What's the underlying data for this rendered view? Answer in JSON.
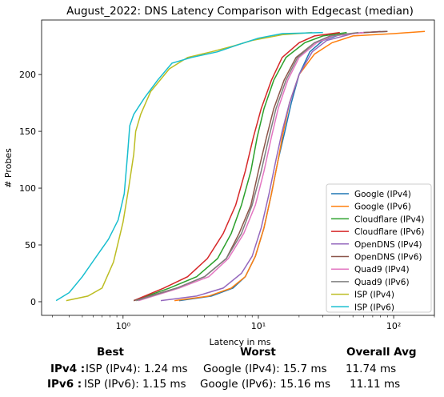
{
  "chart_data": {
    "type": "line",
    "title": "August_2022: DNS Latency Comparison with Edgecast (median)",
    "xlabel": "Latency in ms",
    "ylabel": "# Probes",
    "x_scale": "log",
    "xlim": [
      0.25,
      200
    ],
    "ylim": [
      -12,
      248
    ],
    "x_ticks": [
      1,
      10,
      100
    ],
    "x_tick_labels": [
      "10⁰",
      "10¹",
      "10²"
    ],
    "y_ticks": [
      0,
      50,
      100,
      150,
      200
    ],
    "legend_position": "lower-right",
    "grid": false,
    "series": [
      {
        "name": "Google (IPv4)",
        "color": "#1f77b4",
        "points": [
          [
            2.6,
            1
          ],
          [
            4.5,
            5
          ],
          [
            6.5,
            12
          ],
          [
            8,
            22
          ],
          [
            9.5,
            40
          ],
          [
            11,
            65
          ],
          [
            12.5,
            95
          ],
          [
            14,
            125
          ],
          [
            15.7,
            150
          ],
          [
            17.5,
            175
          ],
          [
            20,
            200
          ],
          [
            24,
            220
          ],
          [
            30,
            230
          ],
          [
            40,
            235
          ],
          [
            60,
            237
          ],
          [
            90,
            238
          ]
        ]
      },
      {
        "name": "Google (IPv6)",
        "color": "#ff7f0e",
        "points": [
          [
            2.4,
            1
          ],
          [
            4.3,
            5
          ],
          [
            6.3,
            12
          ],
          [
            8,
            22
          ],
          [
            9.5,
            40
          ],
          [
            11,
            65
          ],
          [
            12.5,
            95
          ],
          [
            14,
            125
          ],
          [
            15.2,
            148
          ],
          [
            17,
            175
          ],
          [
            20,
            200
          ],
          [
            26,
            218
          ],
          [
            35,
            228
          ],
          [
            50,
            234
          ],
          [
            100,
            236
          ],
          [
            170,
            238
          ]
        ]
      },
      {
        "name": "Cloudflare (IPv4)",
        "color": "#2ca02c",
        "points": [
          [
            1.2,
            1
          ],
          [
            2.2,
            12
          ],
          [
            3.5,
            22
          ],
          [
            5,
            38
          ],
          [
            6.3,
            60
          ],
          [
            7.5,
            85
          ],
          [
            8.8,
            115
          ],
          [
            9.8,
            145
          ],
          [
            11,
            170
          ],
          [
            13,
            195
          ],
          [
            16,
            215
          ],
          [
            22,
            228
          ],
          [
            30,
            234
          ],
          [
            45,
            237
          ]
        ]
      },
      {
        "name": "Cloudflare (IPv6)",
        "color": "#d62728",
        "points": [
          [
            1.2,
            1
          ],
          [
            2,
            12
          ],
          [
            3,
            22
          ],
          [
            4.2,
            38
          ],
          [
            5.5,
            60
          ],
          [
            6.8,
            85
          ],
          [
            8,
            115
          ],
          [
            9.2,
            145
          ],
          [
            10.5,
            170
          ],
          [
            12.5,
            195
          ],
          [
            15,
            215
          ],
          [
            20,
            228
          ],
          [
            26,
            234
          ],
          [
            40,
            237
          ]
        ]
      },
      {
        "name": "OpenDNS (IPv4)",
        "color": "#9467bd",
        "points": [
          [
            1.9,
            1
          ],
          [
            3.5,
            5
          ],
          [
            5.5,
            12
          ],
          [
            7.5,
            25
          ],
          [
            9,
            40
          ],
          [
            10.5,
            65
          ],
          [
            12,
            95
          ],
          [
            13.5,
            125
          ],
          [
            15,
            150
          ],
          [
            17,
            175
          ],
          [
            20,
            200
          ],
          [
            25,
            220
          ],
          [
            32,
            230
          ],
          [
            50,
            236
          ],
          [
            80,
            238
          ]
        ]
      },
      {
        "name": "OpenDNS (IPv6)",
        "color": "#8c564b",
        "points": [
          [
            1.2,
            1
          ],
          [
            2.5,
            12
          ],
          [
            4,
            22
          ],
          [
            5.8,
            38
          ],
          [
            7.2,
            60
          ],
          [
            8.8,
            85
          ],
          [
            10,
            115
          ],
          [
            11.5,
            145
          ],
          [
            13,
            170
          ],
          [
            15.5,
            195
          ],
          [
            19,
            215
          ],
          [
            26,
            228
          ],
          [
            35,
            234
          ],
          [
            60,
            237
          ],
          [
            90,
            238
          ]
        ]
      },
      {
        "name": "Quad9 (IPv4)",
        "color": "#e377c2",
        "points": [
          [
            1.3,
            1
          ],
          [
            2.6,
            12
          ],
          [
            4.3,
            22
          ],
          [
            6,
            38
          ],
          [
            7.8,
            60
          ],
          [
            9.5,
            85
          ],
          [
            11,
            115
          ],
          [
            12.5,
            145
          ],
          [
            14,
            170
          ],
          [
            16.5,
            195
          ],
          [
            20,
            215
          ],
          [
            27,
            228
          ],
          [
            36,
            234
          ],
          [
            60,
            237
          ]
        ]
      },
      {
        "name": "Quad9 (IPv6)",
        "color": "#7f7f7f",
        "points": [
          [
            1.25,
            1
          ],
          [
            2.5,
            12
          ],
          [
            4,
            22
          ],
          [
            5.8,
            38
          ],
          [
            7.5,
            60
          ],
          [
            9,
            85
          ],
          [
            10.5,
            115
          ],
          [
            12,
            145
          ],
          [
            13.5,
            170
          ],
          [
            16,
            195
          ],
          [
            19.5,
            215
          ],
          [
            26,
            228
          ],
          [
            34,
            234
          ],
          [
            55,
            237
          ]
        ]
      },
      {
        "name": "ISP (IPv4)",
        "color": "#bcbd22",
        "points": [
          [
            0.38,
            1
          ],
          [
            0.55,
            5
          ],
          [
            0.7,
            12
          ],
          [
            0.85,
            35
          ],
          [
            1.0,
            70
          ],
          [
            1.1,
            100
          ],
          [
            1.2,
            130
          ],
          [
            1.24,
            150
          ],
          [
            1.35,
            165
          ],
          [
            1.6,
            185
          ],
          [
            2.2,
            205
          ],
          [
            3,
            215
          ],
          [
            4.5,
            220
          ],
          [
            6.5,
            225
          ],
          [
            9,
            230
          ],
          [
            15,
            235
          ],
          [
            25,
            237
          ]
        ]
      },
      {
        "name": "ISP (IPv6)",
        "color": "#17becf",
        "points": [
          [
            0.32,
            1
          ],
          [
            0.4,
            8
          ],
          [
            0.5,
            22
          ],
          [
            0.62,
            38
          ],
          [
            0.78,
            55
          ],
          [
            0.92,
            72
          ],
          [
            1.02,
            95
          ],
          [
            1.08,
            130
          ],
          [
            1.12,
            155
          ],
          [
            1.2,
            165
          ],
          [
            1.45,
            180
          ],
          [
            1.8,
            195
          ],
          [
            2.3,
            210
          ],
          [
            3.2,
            215
          ],
          [
            5,
            220
          ],
          [
            7,
            226
          ],
          [
            10,
            232
          ],
          [
            15,
            236
          ],
          [
            30,
            237
          ]
        ]
      }
    ]
  },
  "summary": {
    "headers": {
      "best": "Best",
      "worst": "Worst",
      "avg": "Overall Avg"
    },
    "rows": [
      {
        "label": "IPv4 :",
        "best": "ISP (IPv4): 1.24 ms",
        "worst": "Google (IPv4): 15.7 ms",
        "avg": "11.74 ms"
      },
      {
        "label": "IPv6 :",
        "best": "ISP (IPv6): 1.15 ms",
        "worst": "Google (IPv6): 15.16 ms",
        "avg": "11.11 ms"
      }
    ]
  }
}
